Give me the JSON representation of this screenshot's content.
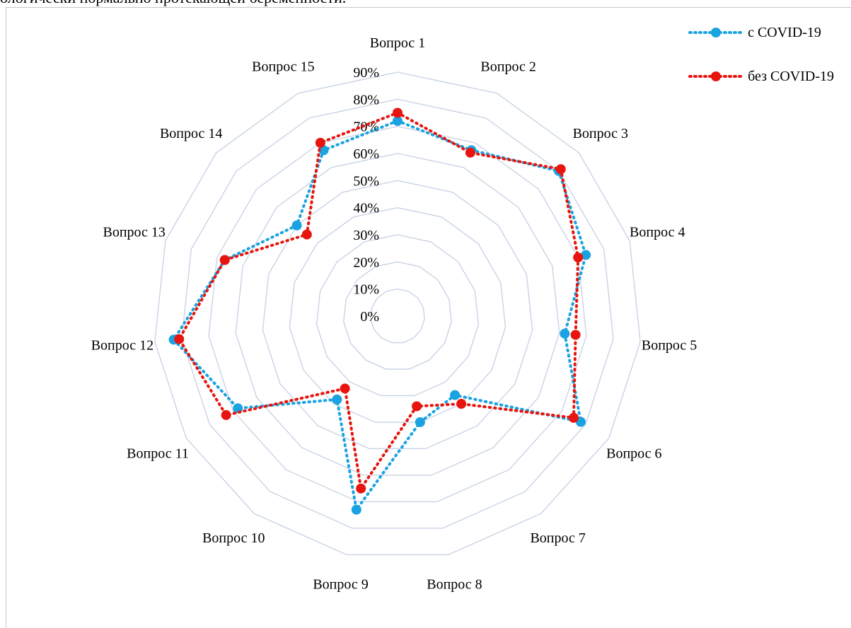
{
  "header": {
    "text": "ологически нормально протекающей беременности."
  },
  "colors": {
    "grid": "#c9d3e6",
    "covid": "#1aa3e0",
    "no_covid": "#e8140e"
  },
  "chart_data": {
    "type": "radar",
    "categories": [
      "Вопрос 1",
      "Вопрос 2",
      "Вопрос 3",
      "Вопрос 4",
      "Вопрос 5",
      "Вопрос 6",
      "Вопрос 7",
      "Вопрос 8",
      "Вопрос 9",
      "Вопрос 10",
      "Вопрос 11",
      "Вопрос 12",
      "Вопрос 13",
      "Вопрос 14",
      "Вопрос 15"
    ],
    "rlim": [
      0,
      90
    ],
    "ticks": [
      "0%",
      "10%",
      "20%",
      "30%",
      "40%",
      "50%",
      "60%",
      "70%",
      "80%",
      "90%"
    ],
    "series": [
      {
        "name": "с COVID-19",
        "color": "#1aa3e0",
        "values": [
          72,
          67,
          80,
          73,
          62,
          78,
          36,
          40,
          73,
          38,
          68,
          83,
          67,
          50,
          67
        ]
      },
      {
        "name": "без COVID-19",
        "color": "#e8140e",
        "values": [
          75,
          66,
          81,
          70,
          66,
          75,
          40,
          34,
          65,
          33,
          73,
          81,
          67,
          45,
          70
        ]
      }
    ],
    "legend_position": "top-right",
    "grid": true
  }
}
